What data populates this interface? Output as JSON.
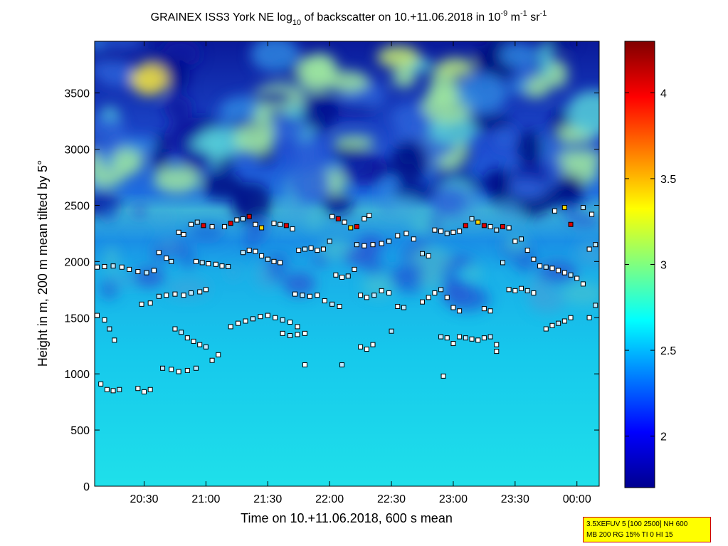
{
  "chart_data": {
    "type": "heatmap",
    "title_parts": {
      "pre": "GRAINEX ISS3 York NE log",
      "sub": "10",
      "mid": " of backscatter on 10.+11.06.2018 in 10",
      "sup1": "-9",
      "mid2": " m",
      "sup2": "-1",
      "mid3": " sr",
      "sup3": "-1"
    },
    "xlabel": "Time on 10.+11.06.2018, 600 s mean",
    "ylabel": "Height in m, 200 m mean tilted by 5°",
    "x_ticks": [
      "20:30",
      "21:00",
      "21:30",
      "22:00",
      "22:30",
      "23:00",
      "23:30",
      "00:00"
    ],
    "x_tick_hours": [
      20.5,
      21.0,
      21.5,
      22.0,
      22.5,
      23.0,
      23.5,
      24.0
    ],
    "xlim_hours": [
      20.1,
      24.18
    ],
    "y_ticks": [
      "0",
      "500",
      "1000",
      "1500",
      "2000",
      "2500",
      "3000",
      "3500"
    ],
    "y_tick_values": [
      0,
      500,
      1000,
      1500,
      2000,
      2500,
      3000,
      3500
    ],
    "ylim": [
      0,
      3960
    ],
    "colorbar": {
      "ticks": [
        "2",
        "2.5",
        "3",
        "3.5",
        "4"
      ],
      "tick_values": [
        2,
        2.5,
        3,
        3.5,
        4
      ],
      "range": [
        1.7,
        4.3
      ],
      "colormap": "jet"
    },
    "layer_points": [
      {
        "t": 20.12,
        "h": 1950
      },
      {
        "t": 20.18,
        "h": 1955
      },
      {
        "t": 20.25,
        "h": 1960
      },
      {
        "t": 20.32,
        "h": 1950
      },
      {
        "t": 20.38,
        "h": 1930
      },
      {
        "t": 20.45,
        "h": 1910
      },
      {
        "t": 20.52,
        "h": 1900
      },
      {
        "t": 20.58,
        "h": 1920
      },
      {
        "t": 20.62,
        "h": 2080
      },
      {
        "t": 20.68,
        "h": 2030
      },
      {
        "t": 20.72,
        "h": 2000
      },
      {
        "t": 20.78,
        "h": 2260
      },
      {
        "t": 20.82,
        "h": 2240
      },
      {
        "t": 20.88,
        "h": 2330
      },
      {
        "t": 20.93,
        "h": 2350
      },
      {
        "t": 20.98,
        "h": 2320
      },
      {
        "t": 21.05,
        "h": 2310
      },
      {
        "t": 20.92,
        "h": 2000
      },
      {
        "t": 20.97,
        "h": 1990
      },
      {
        "t": 21.02,
        "h": 1980
      },
      {
        "t": 21.08,
        "h": 1975
      },
      {
        "t": 21.13,
        "h": 1960
      },
      {
        "t": 21.18,
        "h": 1955
      },
      {
        "t": 21.15,
        "h": 2310
      },
      {
        "t": 21.2,
        "h": 2340
      },
      {
        "t": 21.25,
        "h": 2370
      },
      {
        "t": 21.3,
        "h": 2380
      },
      {
        "t": 21.35,
        "h": 2400
      },
      {
        "t": 21.4,
        "h": 2330
      },
      {
        "t": 21.45,
        "h": 2300
      },
      {
        "t": 21.3,
        "h": 2080
      },
      {
        "t": 21.35,
        "h": 2100
      },
      {
        "t": 21.4,
        "h": 2090
      },
      {
        "t": 21.45,
        "h": 2050
      },
      {
        "t": 21.5,
        "h": 2020
      },
      {
        "t": 21.55,
        "h": 2000
      },
      {
        "t": 21.6,
        "h": 1990
      },
      {
        "t": 21.55,
        "h": 2340
      },
      {
        "t": 21.6,
        "h": 2330
      },
      {
        "t": 21.65,
        "h": 2320
      },
      {
        "t": 21.7,
        "h": 2290
      },
      {
        "t": 21.75,
        "h": 2100
      },
      {
        "t": 21.8,
        "h": 2110
      },
      {
        "t": 21.85,
        "h": 2120
      },
      {
        "t": 21.9,
        "h": 2100
      },
      {
        "t": 21.95,
        "h": 2110
      },
      {
        "t": 22.0,
        "h": 2180
      },
      {
        "t": 22.02,
        "h": 2400
      },
      {
        "t": 22.07,
        "h": 2380
      },
      {
        "t": 22.12,
        "h": 2350
      },
      {
        "t": 22.17,
        "h": 2300
      },
      {
        "t": 22.22,
        "h": 2310
      },
      {
        "t": 22.28,
        "h": 2380
      },
      {
        "t": 22.32,
        "h": 2410
      },
      {
        "t": 22.22,
        "h": 2150
      },
      {
        "t": 22.28,
        "h": 2140
      },
      {
        "t": 22.35,
        "h": 2150
      },
      {
        "t": 22.42,
        "h": 2160
      },
      {
        "t": 22.48,
        "h": 2180
      },
      {
        "t": 22.55,
        "h": 2230
      },
      {
        "t": 22.62,
        "h": 2250
      },
      {
        "t": 22.68,
        "h": 2200
      },
      {
        "t": 22.75,
        "h": 2070
      },
      {
        "t": 22.8,
        "h": 2050
      },
      {
        "t": 22.85,
        "h": 2280
      },
      {
        "t": 22.9,
        "h": 2270
      },
      {
        "t": 22.95,
        "h": 2250
      },
      {
        "t": 23.0,
        "h": 2260
      },
      {
        "t": 23.05,
        "h": 2270
      },
      {
        "t": 23.1,
        "h": 2320
      },
      {
        "t": 23.15,
        "h": 2380
      },
      {
        "t": 23.2,
        "h": 2350
      },
      {
        "t": 23.25,
        "h": 2320
      },
      {
        "t": 23.3,
        "h": 2310
      },
      {
        "t": 23.35,
        "h": 2280
      },
      {
        "t": 23.4,
        "h": 2310
      },
      {
        "t": 23.45,
        "h": 2300
      },
      {
        "t": 23.5,
        "h": 2180
      },
      {
        "t": 23.55,
        "h": 2200
      },
      {
        "t": 23.6,
        "h": 2100
      },
      {
        "t": 23.65,
        "h": 2020
      },
      {
        "t": 23.7,
        "h": 1960
      },
      {
        "t": 23.75,
        "h": 1950
      },
      {
        "t": 23.8,
        "h": 1940
      },
      {
        "t": 23.85,
        "h": 1920
      },
      {
        "t": 23.9,
        "h": 1900
      },
      {
        "t": 23.95,
        "h": 1880
      },
      {
        "t": 24.0,
        "h": 1850
      },
      {
        "t": 24.05,
        "h": 1800
      },
      {
        "t": 24.1,
        "h": 2110
      },
      {
        "t": 24.15,
        "h": 2150
      },
      {
        "t": 23.82,
        "h": 2450
      },
      {
        "t": 23.9,
        "h": 2480
      },
      {
        "t": 23.95,
        "h": 2330
      },
      {
        "t": 24.05,
        "h": 2480
      },
      {
        "t": 24.12,
        "h": 2420
      },
      {
        "t": 20.12,
        "h": 1520
      },
      {
        "t": 20.18,
        "h": 1480
      },
      {
        "t": 20.22,
        "h": 1400
      },
      {
        "t": 20.26,
        "h": 1300
      },
      {
        "t": 20.48,
        "h": 1620
      },
      {
        "t": 20.55,
        "h": 1630
      },
      {
        "t": 20.62,
        "h": 1690
      },
      {
        "t": 20.68,
        "h": 1700
      },
      {
        "t": 20.75,
        "h": 1710
      },
      {
        "t": 20.82,
        "h": 1700
      },
      {
        "t": 20.88,
        "h": 1720
      },
      {
        "t": 20.95,
        "h": 1730
      },
      {
        "t": 21.0,
        "h": 1750
      },
      {
        "t": 20.75,
        "h": 1400
      },
      {
        "t": 20.8,
        "h": 1370
      },
      {
        "t": 20.85,
        "h": 1320
      },
      {
        "t": 20.9,
        "h": 1290
      },
      {
        "t": 20.95,
        "h": 1260
      },
      {
        "t": 21.0,
        "h": 1240
      },
      {
        "t": 21.2,
        "h": 1420
      },
      {
        "t": 21.26,
        "h": 1450
      },
      {
        "t": 21.32,
        "h": 1470
      },
      {
        "t": 21.38,
        "h": 1490
      },
      {
        "t": 21.44,
        "h": 1510
      },
      {
        "t": 21.5,
        "h": 1520
      },
      {
        "t": 21.56,
        "h": 1500
      },
      {
        "t": 21.62,
        "h": 1480
      },
      {
        "t": 21.68,
        "h": 1460
      },
      {
        "t": 21.74,
        "h": 1420
      },
      {
        "t": 21.62,
        "h": 1360
      },
      {
        "t": 21.68,
        "h": 1340
      },
      {
        "t": 21.74,
        "h": 1350
      },
      {
        "t": 21.8,
        "h": 1360
      },
      {
        "t": 21.72,
        "h": 1710
      },
      {
        "t": 21.78,
        "h": 1700
      },
      {
        "t": 21.84,
        "h": 1690
      },
      {
        "t": 21.9,
        "h": 1700
      },
      {
        "t": 21.96,
        "h": 1650
      },
      {
        "t": 22.02,
        "h": 1620
      },
      {
        "t": 22.08,
        "h": 1600
      },
      {
        "t": 22.05,
        "h": 1880
      },
      {
        "t": 22.1,
        "h": 1860
      },
      {
        "t": 22.15,
        "h": 1870
      },
      {
        "t": 22.2,
        "h": 1930
      },
      {
        "t": 22.25,
        "h": 1700
      },
      {
        "t": 22.3,
        "h": 1680
      },
      {
        "t": 22.36,
        "h": 1700
      },
      {
        "t": 22.42,
        "h": 1740
      },
      {
        "t": 22.48,
        "h": 1720
      },
      {
        "t": 22.55,
        "h": 1600
      },
      {
        "t": 22.6,
        "h": 1590
      },
      {
        "t": 22.25,
        "h": 1240
      },
      {
        "t": 22.3,
        "h": 1220
      },
      {
        "t": 22.35,
        "h": 1260
      },
      {
        "t": 22.5,
        "h": 1380
      },
      {
        "t": 22.75,
        "h": 1640
      },
      {
        "t": 22.8,
        "h": 1680
      },
      {
        "t": 22.85,
        "h": 1720
      },
      {
        "t": 22.9,
        "h": 1750
      },
      {
        "t": 22.95,
        "h": 1680
      },
      {
        "t": 23.0,
        "h": 1590
      },
      {
        "t": 23.05,
        "h": 1560
      },
      {
        "t": 22.9,
        "h": 1330
      },
      {
        "t": 22.95,
        "h": 1320
      },
      {
        "t": 23.0,
        "h": 1270
      },
      {
        "t": 23.05,
        "h": 1330
      },
      {
        "t": 23.1,
        "h": 1320
      },
      {
        "t": 23.15,
        "h": 1310
      },
      {
        "t": 23.2,
        "h": 1300
      },
      {
        "t": 23.25,
        "h": 1320
      },
      {
        "t": 23.3,
        "h": 1330
      },
      {
        "t": 23.35,
        "h": 1260
      },
      {
        "t": 23.25,
        "h": 1580
      },
      {
        "t": 23.3,
        "h": 1560
      },
      {
        "t": 23.4,
        "h": 1990
      },
      {
        "t": 23.45,
        "h": 1750
      },
      {
        "t": 23.5,
        "h": 1740
      },
      {
        "t": 23.55,
        "h": 1760
      },
      {
        "t": 23.6,
        "h": 1740
      },
      {
        "t": 23.65,
        "h": 1720
      },
      {
        "t": 23.75,
        "h": 1400
      },
      {
        "t": 23.8,
        "h": 1430
      },
      {
        "t": 23.85,
        "h": 1450
      },
      {
        "t": 23.9,
        "h": 1470
      },
      {
        "t": 23.95,
        "h": 1500
      },
      {
        "t": 24.1,
        "h": 1500
      },
      {
        "t": 24.15,
        "h": 1610
      },
      {
        "t": 20.15,
        "h": 910
      },
      {
        "t": 20.2,
        "h": 860
      },
      {
        "t": 20.25,
        "h": 850
      },
      {
        "t": 20.3,
        "h": 860
      },
      {
        "t": 20.45,
        "h": 870
      },
      {
        "t": 20.5,
        "h": 840
      },
      {
        "t": 20.55,
        "h": 860
      },
      {
        "t": 20.65,
        "h": 1050
      },
      {
        "t": 20.72,
        "h": 1040
      },
      {
        "t": 20.78,
        "h": 1020
      },
      {
        "t": 20.85,
        "h": 1030
      },
      {
        "t": 20.92,
        "h": 1050
      },
      {
        "t": 21.05,
        "h": 1120
      },
      {
        "t": 21.1,
        "h": 1170
      },
      {
        "t": 21.8,
        "h": 1080
      },
      {
        "t": 22.1,
        "h": 1080
      },
      {
        "t": 22.92,
        "h": 980
      },
      {
        "t": 23.35,
        "h": 1200
      }
    ],
    "info_lines": [
      "3.5XEFUV 5 [100 2500] NH 600",
      "MB 200 RG 15% TI 0 HI 15"
    ]
  },
  "info_box": {
    "line1": "3.5XEFUV 5 [100 2500] NH 600",
    "line2": "MB 200 RG 15% TI 0 HI 15",
    "bg": "#ffff00",
    "border": "#cc0000"
  }
}
